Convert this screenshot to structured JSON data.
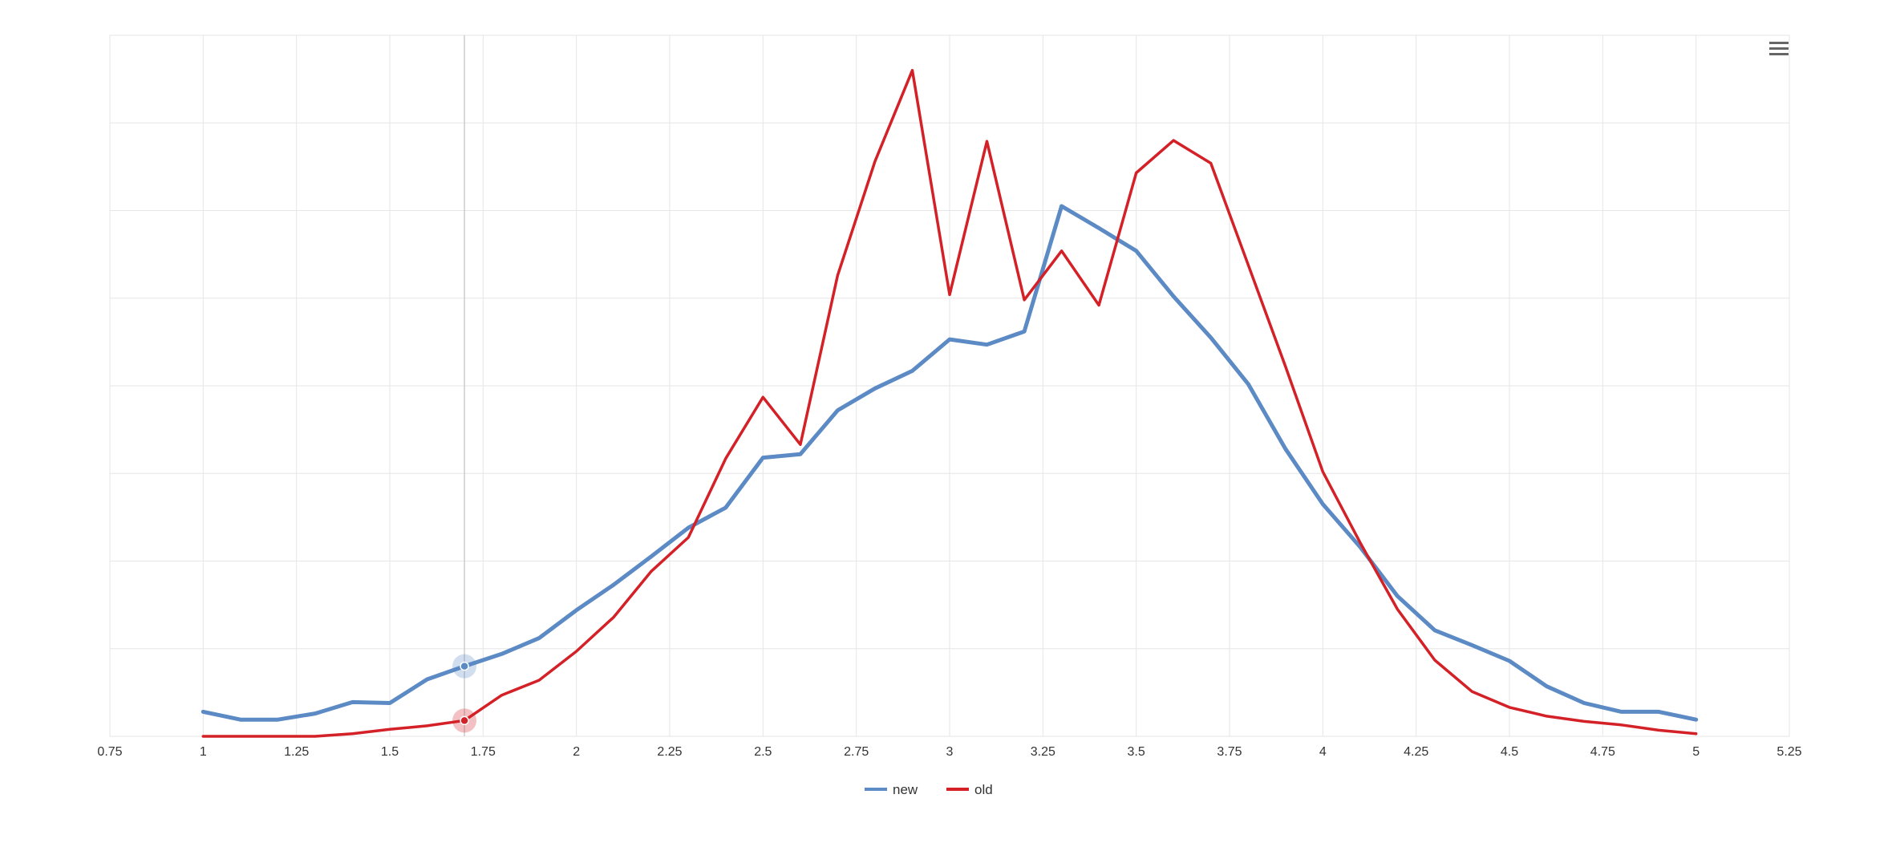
{
  "chart_data": {
    "type": "line",
    "title": "",
    "xlabel": "",
    "ylabel": "",
    "xlim": [
      0.75,
      5.25
    ],
    "ylim": [
      0,
      8
    ],
    "xticks": [
      "0.75",
      "1",
      "1.25",
      "1.5",
      "1.75",
      "2",
      "2.25",
      "2.5",
      "2.75",
      "3",
      "3.25",
      "3.5",
      "3.75",
      "4",
      "4.25",
      "4.5",
      "4.75",
      "5",
      "5.25"
    ],
    "grid": true,
    "legend_position": "bottom-center",
    "x": [
      1.0,
      1.1,
      1.2,
      1.3,
      1.4,
      1.5,
      1.6,
      1.7,
      1.8,
      1.9,
      2.0,
      2.1,
      2.2,
      2.3,
      2.4,
      2.5,
      2.6,
      2.7,
      2.8,
      2.9,
      3.0,
      3.1,
      3.2,
      3.3,
      3.4,
      3.5,
      3.6,
      3.7,
      3.8,
      3.9,
      4.0,
      4.1,
      4.2,
      4.3,
      4.4,
      4.5,
      4.6,
      4.7,
      4.8,
      4.9,
      5.0
    ],
    "series": [
      {
        "name": "new",
        "color": "#5b8ac4",
        "values": [
          0.28,
          0.19,
          0.19,
          0.26,
          0.39,
          0.38,
          0.65,
          0.8,
          0.94,
          1.12,
          1.44,
          1.73,
          2.05,
          2.38,
          2.61,
          3.18,
          3.22,
          3.72,
          3.97,
          4.17,
          4.53,
          4.47,
          4.62,
          6.05,
          5.8,
          5.54,
          5.02,
          4.55,
          4.02,
          3.28,
          2.65,
          2.16,
          1.6,
          1.21,
          1.04,
          0.86,
          0.57,
          0.38,
          0.28,
          0.28,
          0.19
        ]
      },
      {
        "name": "old",
        "color": "#d42027",
        "values": [
          0.0,
          0.0,
          0.0,
          0.0,
          0.03,
          0.08,
          0.12,
          0.18,
          0.47,
          0.64,
          0.97,
          1.36,
          1.88,
          2.27,
          3.17,
          3.87,
          3.33,
          5.26,
          6.56,
          7.6,
          5.04,
          6.79,
          4.98,
          5.54,
          4.92,
          6.43,
          6.8,
          6.54,
          5.38,
          4.22,
          3.02,
          2.21,
          1.45,
          0.87,
          0.51,
          0.33,
          0.23,
          0.17,
          0.13,
          0.07,
          0.03
        ]
      }
    ],
    "highlight_x": 1.7
  },
  "ui": {
    "menu_icon": "hamburger-menu-icon"
  }
}
